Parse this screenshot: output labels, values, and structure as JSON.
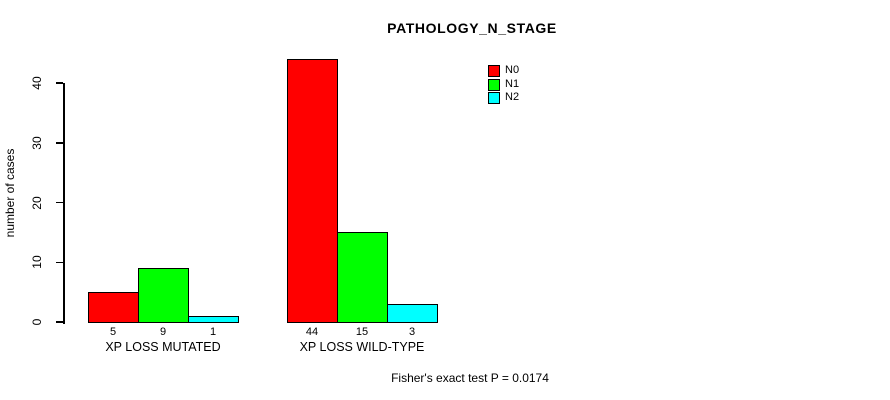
{
  "chart_data": {
    "type": "bar",
    "title": "PATHOLOGY_N_STAGE",
    "ylabel": "number of cases",
    "xlabel": "",
    "categories": [
      "XP LOSS MUTATED",
      "XP LOSS WILD-TYPE"
    ],
    "series": [
      {
        "name": "N0",
        "color": "#FF0000",
        "values": [
          5,
          44
        ]
      },
      {
        "name": "N1",
        "color": "#00FF00",
        "values": [
          9,
          15
        ]
      },
      {
        "name": "N2",
        "color": "#00FFFF",
        "values": [
          1,
          3
        ]
      }
    ],
    "bar_value_labels": [
      [
        "5",
        "9",
        "1"
      ],
      [
        "44",
        "15",
        "3"
      ]
    ],
    "y_ticks": [
      0,
      10,
      20,
      30,
      40
    ],
    "ylim": [
      0,
      44
    ],
    "grid": false,
    "legend_position": "top-right-inside",
    "legend_entries": [
      "N0",
      "N1",
      "N2"
    ],
    "annotation": "Fisher's exact test P = 0.0174"
  },
  "colors": {
    "background": "#FFFFFF",
    "axis": "#000000",
    "text": "#000000",
    "series_n0": "#FF0000",
    "series_n1": "#00FF00",
    "series_n2": "#00FFFF"
  }
}
